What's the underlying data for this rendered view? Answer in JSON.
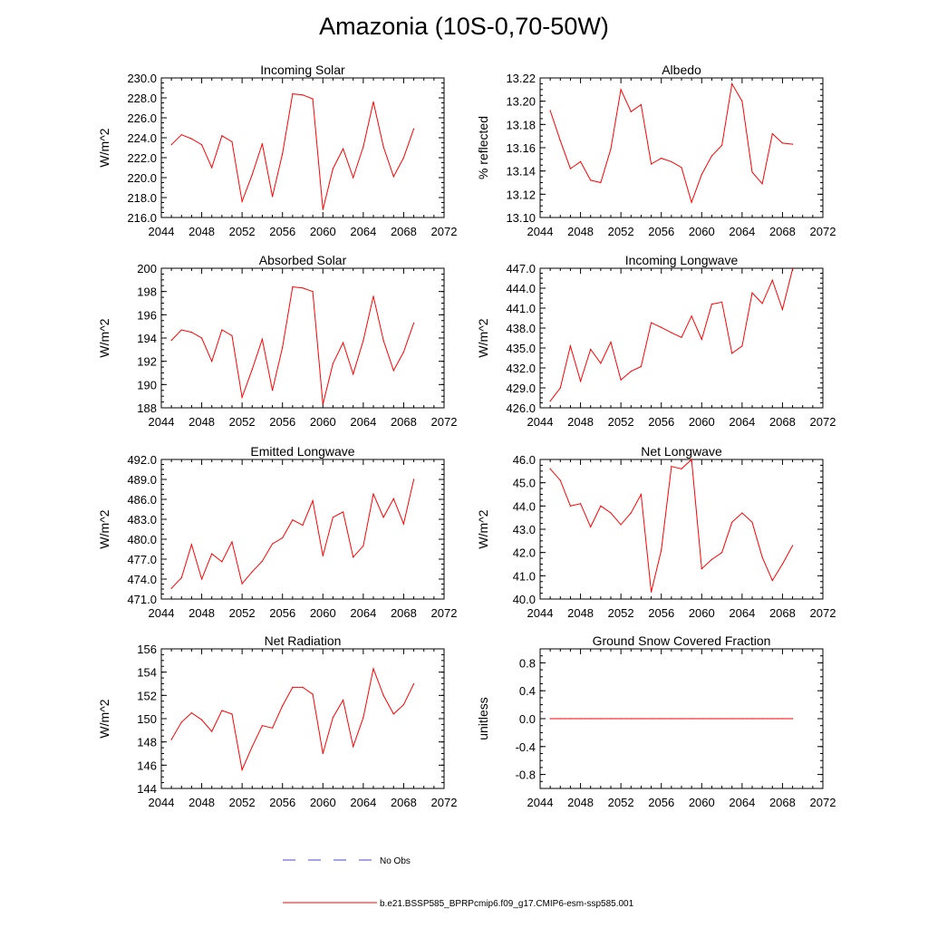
{
  "page_title": "Amazonia (10S-0,70-50W)",
  "colors": {
    "series": "#ff0000",
    "axis": "#000000",
    "obs": "#4a4ac8"
  },
  "legend": {
    "obs_label": "No Obs",
    "model_label": "b.e21.BSSP585_BPRPcmip6.f09_g17.CMIP6-esm-ssp585.001"
  },
  "chart_data": [
    {
      "type": "line",
      "title": "Incoming Solar",
      "ylabel": "W/m^2",
      "xlim": [
        2044,
        2072
      ],
      "ylim": [
        216,
        230
      ],
      "xticks": [
        "2044",
        "2048",
        "2052",
        "2056",
        "2060",
        "2064",
        "2068",
        "2072"
      ],
      "yticks": [
        "216.0",
        "218.0",
        "220.0",
        "222.0",
        "224.0",
        "226.0",
        "228.0",
        "230.0"
      ],
      "x": [
        2045,
        2046,
        2047,
        2048,
        2049,
        2050,
        2051,
        2052,
        2053,
        2054,
        2055,
        2056,
        2057,
        2058,
        2059,
        2060,
        2061,
        2062,
        2063,
        2064,
        2065,
        2066,
        2067,
        2068,
        2069
      ],
      "values": [
        223.3,
        224.3,
        223.9,
        223.3,
        221.0,
        224.2,
        223.6,
        217.6,
        220.3,
        223.4,
        218.1,
        222.4,
        228.4,
        228.3,
        227.9,
        216.8,
        220.9,
        222.9,
        220.0,
        223.1,
        227.6,
        223.1,
        220.1,
        222.0,
        224.9
      ]
    },
    {
      "type": "line",
      "title": "Albedo",
      "ylabel": "% reflected",
      "xlim": [
        2044,
        2072
      ],
      "ylim": [
        13.1,
        13.22
      ],
      "xticks": [
        "2044",
        "2048",
        "2052",
        "2056",
        "2060",
        "2064",
        "2068",
        "2072"
      ],
      "yticks": [
        "13.10",
        "13.12",
        "13.14",
        "13.16",
        "13.18",
        "13.20",
        "13.22"
      ],
      "x": [
        2045,
        2046,
        2047,
        2048,
        2049,
        2050,
        2051,
        2052,
        2053,
        2054,
        2055,
        2056,
        2057,
        2058,
        2059,
        2060,
        2061,
        2062,
        2063,
        2064,
        2065,
        2066,
        2067,
        2068,
        2069
      ],
      "values": [
        13.192,
        13.166,
        13.142,
        13.148,
        13.132,
        13.13,
        13.159,
        13.21,
        13.191,
        13.197,
        13.146,
        13.151,
        13.148,
        13.143,
        13.113,
        13.137,
        13.153,
        13.162,
        13.215,
        13.2,
        13.139,
        13.129,
        13.172,
        13.164,
        13.163
      ]
    },
    {
      "type": "line",
      "title": "Absorbed Solar",
      "ylabel": "W/m^2",
      "xlim": [
        2044,
        2072
      ],
      "ylim": [
        188,
        200
      ],
      "xticks": [
        "2044",
        "2048",
        "2052",
        "2056",
        "2060",
        "2064",
        "2068",
        "2072"
      ],
      "yticks": [
        "188",
        "190",
        "192",
        "194",
        "196",
        "198",
        "200"
      ],
      "x": [
        2045,
        2046,
        2047,
        2048,
        2049,
        2050,
        2051,
        2052,
        2053,
        2054,
        2055,
        2056,
        2057,
        2058,
        2059,
        2060,
        2061,
        2062,
        2063,
        2064,
        2065,
        2066,
        2067,
        2068,
        2069
      ],
      "values": [
        193.8,
        194.7,
        194.5,
        194.0,
        192.0,
        194.7,
        194.2,
        188.9,
        191.3,
        193.9,
        189.5,
        193.2,
        198.4,
        198.3,
        198.0,
        188.3,
        191.8,
        193.6,
        190.9,
        193.8,
        197.6,
        193.8,
        191.2,
        192.8,
        195.3
      ]
    },
    {
      "type": "line",
      "title": "Incoming Longwave",
      "ylabel": "W/m^2",
      "xlim": [
        2044,
        2072
      ],
      "ylim": [
        426,
        447
      ],
      "xticks": [
        "2044",
        "2048",
        "2052",
        "2056",
        "2060",
        "2064",
        "2068",
        "2072"
      ],
      "yticks": [
        "426.0",
        "429.0",
        "432.0",
        "435.0",
        "438.0",
        "441.0",
        "444.0",
        "447.0"
      ],
      "x": [
        2045,
        2046,
        2047,
        2048,
        2049,
        2050,
        2051,
        2052,
        2053,
        2054,
        2055,
        2056,
        2057,
        2058,
        2059,
        2060,
        2061,
        2062,
        2063,
        2064,
        2065,
        2066,
        2067,
        2068,
        2069
      ],
      "values": [
        427.0,
        429.0,
        435.3,
        430.0,
        434.8,
        432.7,
        435.9,
        430.2,
        431.5,
        432.2,
        438.8,
        438.1,
        437.3,
        436.6,
        439.8,
        436.3,
        441.6,
        441.9,
        434.2,
        435.3,
        443.3,
        441.7,
        445.2,
        440.8,
        446.9
      ]
    },
    {
      "type": "line",
      "title": "Emitted Longwave",
      "ylabel": "W/m^2",
      "xlim": [
        2044,
        2072
      ],
      "ylim": [
        471,
        492
      ],
      "xticks": [
        "2044",
        "2048",
        "2052",
        "2056",
        "2060",
        "2064",
        "2068",
        "2072"
      ],
      "yticks": [
        "471.0",
        "474.0",
        "477.0",
        "480.0",
        "483.0",
        "486.0",
        "489.0",
        "492.0"
      ],
      "x": [
        2045,
        2046,
        2047,
        2048,
        2049,
        2050,
        2051,
        2052,
        2053,
        2054,
        2055,
        2056,
        2057,
        2058,
        2059,
        2060,
        2061,
        2062,
        2063,
        2064,
        2065,
        2066,
        2067,
        2068,
        2069
      ],
      "values": [
        472.6,
        474.2,
        479.2,
        474.0,
        477.8,
        476.6,
        479.6,
        473.3,
        475.1,
        476.7,
        479.3,
        480.2,
        482.9,
        482.1,
        485.8,
        477.5,
        483.3,
        484.1,
        477.3,
        479.0,
        486.8,
        483.3,
        486.1,
        482.3,
        489.0
      ]
    },
    {
      "type": "line",
      "title": "Net Longwave",
      "ylabel": "W/m^2",
      "xlim": [
        2044,
        2072
      ],
      "ylim": [
        40,
        46
      ],
      "xticks": [
        "2044",
        "2048",
        "2052",
        "2056",
        "2060",
        "2064",
        "2068",
        "2072"
      ],
      "yticks": [
        "40.0",
        "41.0",
        "42.0",
        "43.0",
        "44.0",
        "45.0",
        "46.0"
      ],
      "x": [
        2045,
        2046,
        2047,
        2048,
        2049,
        2050,
        2051,
        2052,
        2053,
        2054,
        2055,
        2056,
        2057,
        2058,
        2059,
        2060,
        2061,
        2062,
        2063,
        2064,
        2065,
        2066,
        2067,
        2068,
        2069
      ],
      "values": [
        45.6,
        45.1,
        44.0,
        44.1,
        43.1,
        44.0,
        43.7,
        43.2,
        43.7,
        44.5,
        40.3,
        42.1,
        45.7,
        45.6,
        46.0,
        41.3,
        41.7,
        42.0,
        43.3,
        43.7,
        43.3,
        41.8,
        40.8,
        41.5,
        42.3
      ]
    },
    {
      "type": "line",
      "title": "Net Radiation",
      "ylabel": "W/m^2",
      "xlim": [
        2044,
        2072
      ],
      "ylim": [
        144,
        156
      ],
      "xticks": [
        "2044",
        "2048",
        "2052",
        "2056",
        "2060",
        "2064",
        "2068",
        "2072"
      ],
      "yticks": [
        "144",
        "146",
        "148",
        "150",
        "152",
        "154",
        "156"
      ],
      "x": [
        2045,
        2046,
        2047,
        2048,
        2049,
        2050,
        2051,
        2052,
        2053,
        2054,
        2055,
        2056,
        2057,
        2058,
        2059,
        2060,
        2061,
        2062,
        2063,
        2064,
        2065,
        2066,
        2067,
        2068,
        2069
      ],
      "values": [
        148.2,
        149.7,
        150.5,
        149.9,
        148.9,
        150.7,
        150.4,
        145.6,
        147.6,
        149.4,
        149.2,
        151.1,
        152.7,
        152.7,
        152.1,
        147.0,
        150.1,
        151.6,
        147.6,
        150.1,
        154.3,
        152.0,
        150.4,
        151.2,
        153.0
      ]
    },
    {
      "type": "line",
      "title": "Ground Snow Covered Fraction",
      "ylabel": "unitless",
      "xlim": [
        2044,
        2072
      ],
      "ylim": [
        -1.0,
        1.0
      ],
      "xticks": [
        "2044",
        "2048",
        "2052",
        "2056",
        "2060",
        "2064",
        "2068",
        "2072"
      ],
      "ytickvals": [
        -0.8,
        -0.4,
        0.0,
        0.4,
        0.8
      ],
      "yticks": [
        "-0.8",
        "-0.4",
        "0.0",
        "0.4",
        "0.8"
      ],
      "x": [
        2045,
        2046,
        2047,
        2048,
        2049,
        2050,
        2051,
        2052,
        2053,
        2054,
        2055,
        2056,
        2057,
        2058,
        2059,
        2060,
        2061,
        2062,
        2063,
        2064,
        2065,
        2066,
        2067,
        2068,
        2069
      ],
      "values": [
        0,
        0,
        0,
        0,
        0,
        0,
        0,
        0,
        0,
        0,
        0,
        0,
        0,
        0,
        0,
        0,
        0,
        0,
        0,
        0,
        0,
        0,
        0,
        0,
        0
      ]
    }
  ]
}
